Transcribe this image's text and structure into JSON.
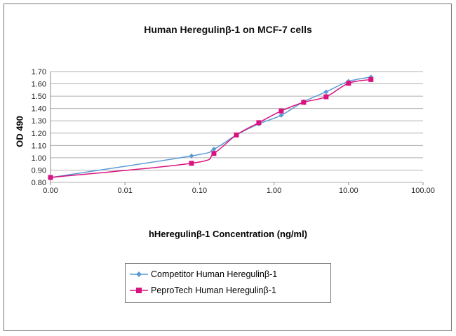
{
  "chart_data": {
    "type": "line",
    "title": "Human Heregulinβ-1 on MCF-7 cells",
    "xlabel": "hHeregulinβ-1 Concentration (ng/ml)",
    "ylabel": "OD 490",
    "xscale": "log",
    "xlim": [
      0.001,
      100
    ],
    "ylim": [
      0.8,
      1.7
    ],
    "xticks": [
      0.001,
      0.01,
      0.1,
      1,
      10,
      100
    ],
    "xtick_labels": [
      "0.00",
      "0.01",
      "0.10",
      "1.00",
      "10.00",
      "100.00"
    ],
    "yticks": [
      0.8,
      0.9,
      1.0,
      1.1,
      1.2,
      1.3,
      1.4,
      1.5,
      1.6,
      1.7
    ],
    "ytick_labels": [
      "0.80",
      "0.90",
      "1.00",
      "1.10",
      "1.20",
      "1.30",
      "1.40",
      "1.50",
      "1.60",
      "1.70"
    ],
    "grid": "horizontal",
    "legend_position": "bottom",
    "x": [
      0.001,
      0.078,
      0.156,
      0.3125,
      0.625,
      1.25,
      2.5,
      5,
      10,
      20
    ],
    "series": [
      {
        "name": "Competitor Human Heregulinβ-1",
        "color": "#5b9bd5",
        "marker": "diamond",
        "values": [
          0.84,
          1.015,
          1.07,
          1.185,
          1.275,
          1.345,
          1.455,
          1.535,
          1.62,
          1.655
        ]
      },
      {
        "name": "PeproTech Human Heregulinβ-1",
        "color": "#d9127f",
        "marker": "square",
        "values": [
          0.84,
          0.955,
          1.035,
          1.185,
          1.285,
          1.38,
          1.45,
          1.495,
          1.605,
          1.635
        ]
      }
    ]
  }
}
